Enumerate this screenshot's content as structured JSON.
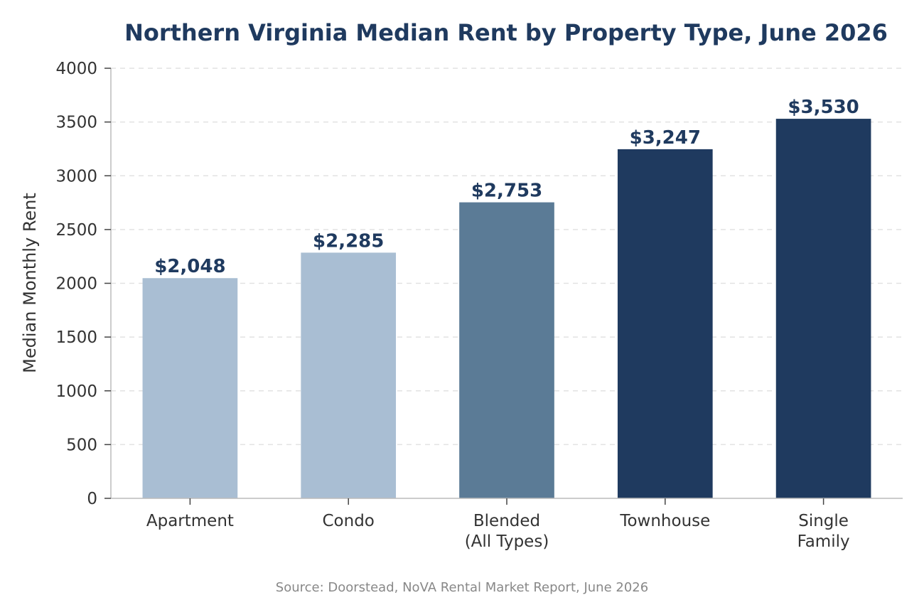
{
  "chart_data": {
    "type": "bar",
    "title": "Northern Virginia Median Rent by Property Type, June 2026",
    "xlabel": "",
    "ylabel": "Median Monthly Rent",
    "ylim": [
      0,
      4000
    ],
    "yticks": [
      0,
      500,
      1000,
      1500,
      2000,
      2500,
      3000,
      3500,
      4000
    ],
    "grid": true,
    "categories": [
      "Apartment",
      "Condo",
      "Blended\n(All Types)",
      "Townhouse",
      "Single\nFamily"
    ],
    "values": [
      2048,
      2285,
      2753,
      3247,
      3530
    ],
    "value_labels": [
      "$2,048",
      "$2,285",
      "$2,753",
      "$3,247",
      "$3,530"
    ],
    "bar_colors": [
      "#a9bed3",
      "#a9bed3",
      "#5b7b96",
      "#1f3a5f",
      "#1f3a5f"
    ],
    "source": "Source: Doorstead, NoVA Rental Market Report, June 2026"
  },
  "colors": {
    "title": "#1f3a5f",
    "value_label": "#1f3a5f",
    "tick_text": "#333333",
    "source_text": "#888888",
    "grid": "#e2e2e2",
    "axis": "#bbbbbb"
  }
}
